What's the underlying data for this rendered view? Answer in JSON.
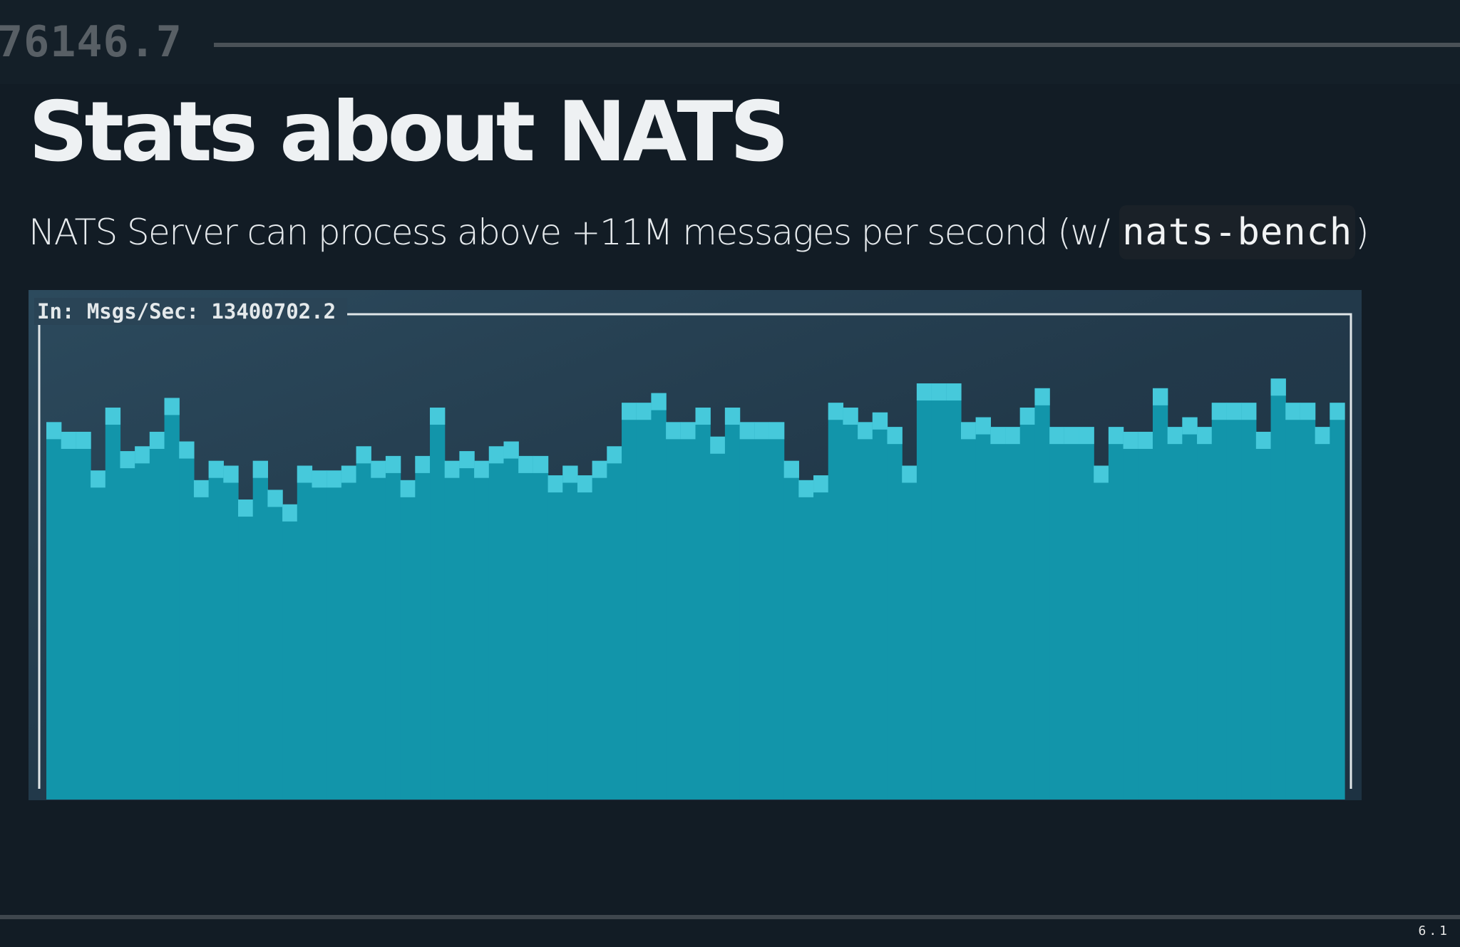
{
  "background_readout": "76146.7",
  "slide": {
    "title": "Stats about NATS",
    "subtitle_text": "NATS Server can process above +11M messages per second (w/ ",
    "subtitle_code": "nats-bench",
    "subtitle_close": ")"
  },
  "colors": {
    "background": "#121c25",
    "bar_fill": "#1295aa",
    "bar_highlight": "#46c9db",
    "panel_frame": "#e0e6e8"
  },
  "page_number": "6.1",
  "chart_data": {
    "type": "bar",
    "title": "In: Msgs/Sec: 13400702.2",
    "x": [
      1,
      2,
      3,
      4,
      5,
      6,
      7,
      8,
      9,
      10,
      11,
      12,
      13,
      14,
      15,
      16,
      17,
      18,
      19,
      20,
      21,
      22,
      23,
      24,
      25,
      26,
      27,
      28,
      29,
      30,
      31,
      32,
      33,
      34,
      35,
      36,
      37,
      38,
      39,
      40,
      41,
      42,
      43,
      44,
      45,
      46,
      47,
      48,
      49,
      50,
      51,
      52,
      53,
      54,
      55,
      56,
      57,
      58,
      59,
      60,
      61,
      62,
      63,
      64,
      65,
      66,
      67,
      68,
      69,
      70,
      71,
      72,
      73,
      74,
      75,
      76,
      77,
      78,
      79,
      80,
      81,
      82,
      83,
      84,
      85,
      86,
      87,
      88
    ],
    "values": [
      78,
      76,
      76,
      68,
      81,
      72,
      73,
      76,
      83,
      74,
      66,
      70,
      69,
      62,
      70,
      64,
      61,
      69,
      68,
      68,
      69,
      73,
      70,
      71,
      66,
      71,
      81,
      70,
      72,
      70,
      73,
      74,
      71,
      71,
      67,
      69,
      67,
      70,
      73,
      82,
      82,
      84,
      78,
      78,
      81,
      75,
      81,
      78,
      78,
      78,
      70,
      66,
      67,
      82,
      81,
      78,
      80,
      77,
      69,
      86,
      86,
      86,
      78,
      79,
      77,
      77,
      81,
      85,
      77,
      77,
      77,
      69,
      77,
      76,
      76,
      85,
      77,
      79,
      77,
      82,
      82,
      82,
      76,
      87,
      82,
      82,
      77,
      82
    ],
    "ylim": [
      0,
      100
    ],
    "grid": false,
    "legend": "none"
  }
}
